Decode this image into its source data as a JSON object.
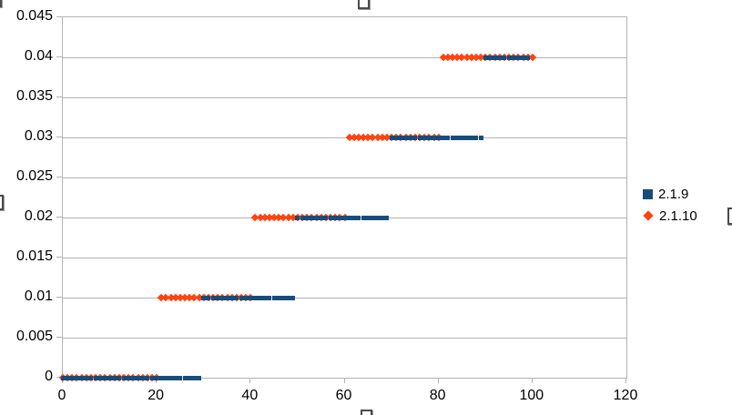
{
  "app_context": "spreadsheet-embedded-chart-selected",
  "colors": {
    "background": "#ffffff",
    "gridline": "#b3b3b3",
    "axis_text": "#000000",
    "series_blue": "#174d7d",
    "series_red": "#ff420e"
  },
  "ui": {
    "selection_handles_visible": [
      "top-left",
      "top-center",
      "left-middle",
      "right-middle",
      "bottom-center"
    ]
  },
  "chart_data": {
    "type": "scatter",
    "title": "",
    "xlabel": "",
    "ylabel": "",
    "xlim": [
      0,
      120
    ],
    "ylim": [
      0,
      0.045
    ],
    "x_ticks": [
      0,
      20,
      40,
      60,
      80,
      100,
      120
    ],
    "y_ticks": [
      0,
      0.005,
      0.01,
      0.015,
      0.02,
      0.025,
      0.03,
      0.035,
      0.04,
      0.045
    ],
    "y_tick_labels": [
      "0",
      "0.005",
      "0.01",
      "0.015",
      "0.02",
      "0.025",
      "0.03",
      "0.035",
      "0.04",
      "0.045"
    ],
    "x_tick_labels": [
      "0",
      "20",
      "40",
      "60",
      "80",
      "100",
      "120"
    ],
    "grid": "horizontal-only",
    "legend_position": "right",
    "point_x_step": 1,
    "series": [
      {
        "name": "2.1.10",
        "marker": "diamond",
        "color": "#ff420e",
        "z": 2,
        "bands": [
          {
            "x_start": 0,
            "x_end": 20,
            "y": 0
          },
          {
            "x_start": 21,
            "x_end": 40,
            "y": 0.01
          },
          {
            "x_start": 41,
            "x_end": 60,
            "y": 0.02
          },
          {
            "x_start": 61,
            "x_end": 80,
            "y": 0.03
          },
          {
            "x_start": 81,
            "x_end": 100,
            "y": 0.04
          }
        ]
      },
      {
        "name": "2.1.9",
        "marker": "square",
        "color": "#174d7d",
        "z": 3,
        "bands": [
          {
            "x_start": 0,
            "x_end": 29,
            "y": 0
          },
          {
            "x_start": 30,
            "x_end": 49,
            "y": 0.01
          },
          {
            "x_start": 50,
            "x_end": 69,
            "y": 0.02
          },
          {
            "x_start": 70,
            "x_end": 89,
            "y": 0.03
          },
          {
            "x_start": 90,
            "x_end": 99,
            "y": 0.04
          }
        ]
      }
    ],
    "legend": [
      {
        "label": "2.1.9",
        "marker": "square",
        "color": "#174d7d"
      },
      {
        "label": "2.1.10",
        "marker": "diamond",
        "color": "#ff420e"
      }
    ]
  }
}
